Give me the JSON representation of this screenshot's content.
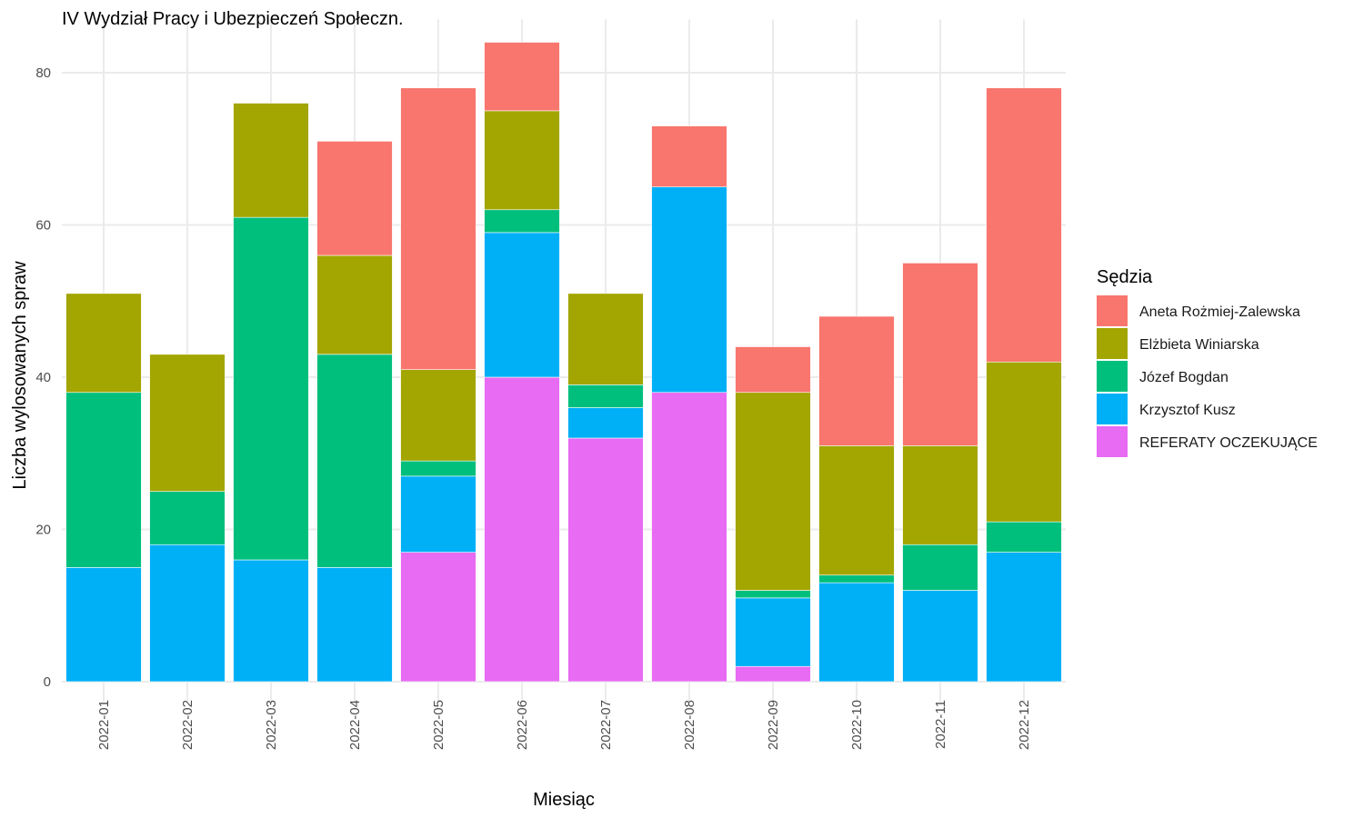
{
  "chart_data": {
    "type": "bar",
    "stacked": true,
    "title": "IV Wydział Pracy i Ubezpieczeń Społeczn.",
    "xlabel": "Miesiąc",
    "ylabel": "Liczba wylosowanych spraw",
    "ylim": [
      0,
      87
    ],
    "yticks": [
      0,
      20,
      40,
      60,
      80
    ],
    "grid": true,
    "legend": {
      "title": "Sędzia",
      "position": "right"
    },
    "categories": [
      "2022-01",
      "2022-02",
      "2022-03",
      "2022-04",
      "2022-05",
      "2022-06",
      "2022-07",
      "2022-08",
      "2022-09",
      "2022-10",
      "2022-11",
      "2022-12"
    ],
    "series": [
      {
        "name": "REFERATY OCZEKUJĄCE",
        "color": "#E76BF3",
        "values": [
          0,
          0,
          0,
          0,
          17,
          40,
          32,
          38,
          2,
          0,
          0,
          0
        ]
      },
      {
        "name": "Krzysztof Kusz",
        "color": "#00B0F6",
        "values": [
          15,
          18,
          16,
          15,
          10,
          19,
          4,
          27,
          9,
          13,
          12,
          17
        ]
      },
      {
        "name": "Józef Bogdan",
        "color": "#00BF7D",
        "values": [
          23,
          7,
          45,
          28,
          2,
          3,
          3,
          0,
          1,
          1,
          6,
          4
        ]
      },
      {
        "name": "Elżbieta Winiarska",
        "color": "#A3A500",
        "values": [
          13,
          18,
          15,
          13,
          12,
          13,
          12,
          0,
          26,
          17,
          13,
          21
        ]
      },
      {
        "name": "Aneta Rożmiej-Zalewska",
        "color": "#F8766D",
        "values": [
          0,
          0,
          0,
          15,
          37,
          9,
          0,
          8,
          6,
          17,
          24,
          36
        ]
      }
    ],
    "legend_order": [
      "Aneta Rożmiej-Zalewska",
      "Elżbieta Winiarska",
      "Józef Bogdan",
      "Krzysztof Kusz",
      "REFERATY OCZEKUJĄCE"
    ]
  }
}
